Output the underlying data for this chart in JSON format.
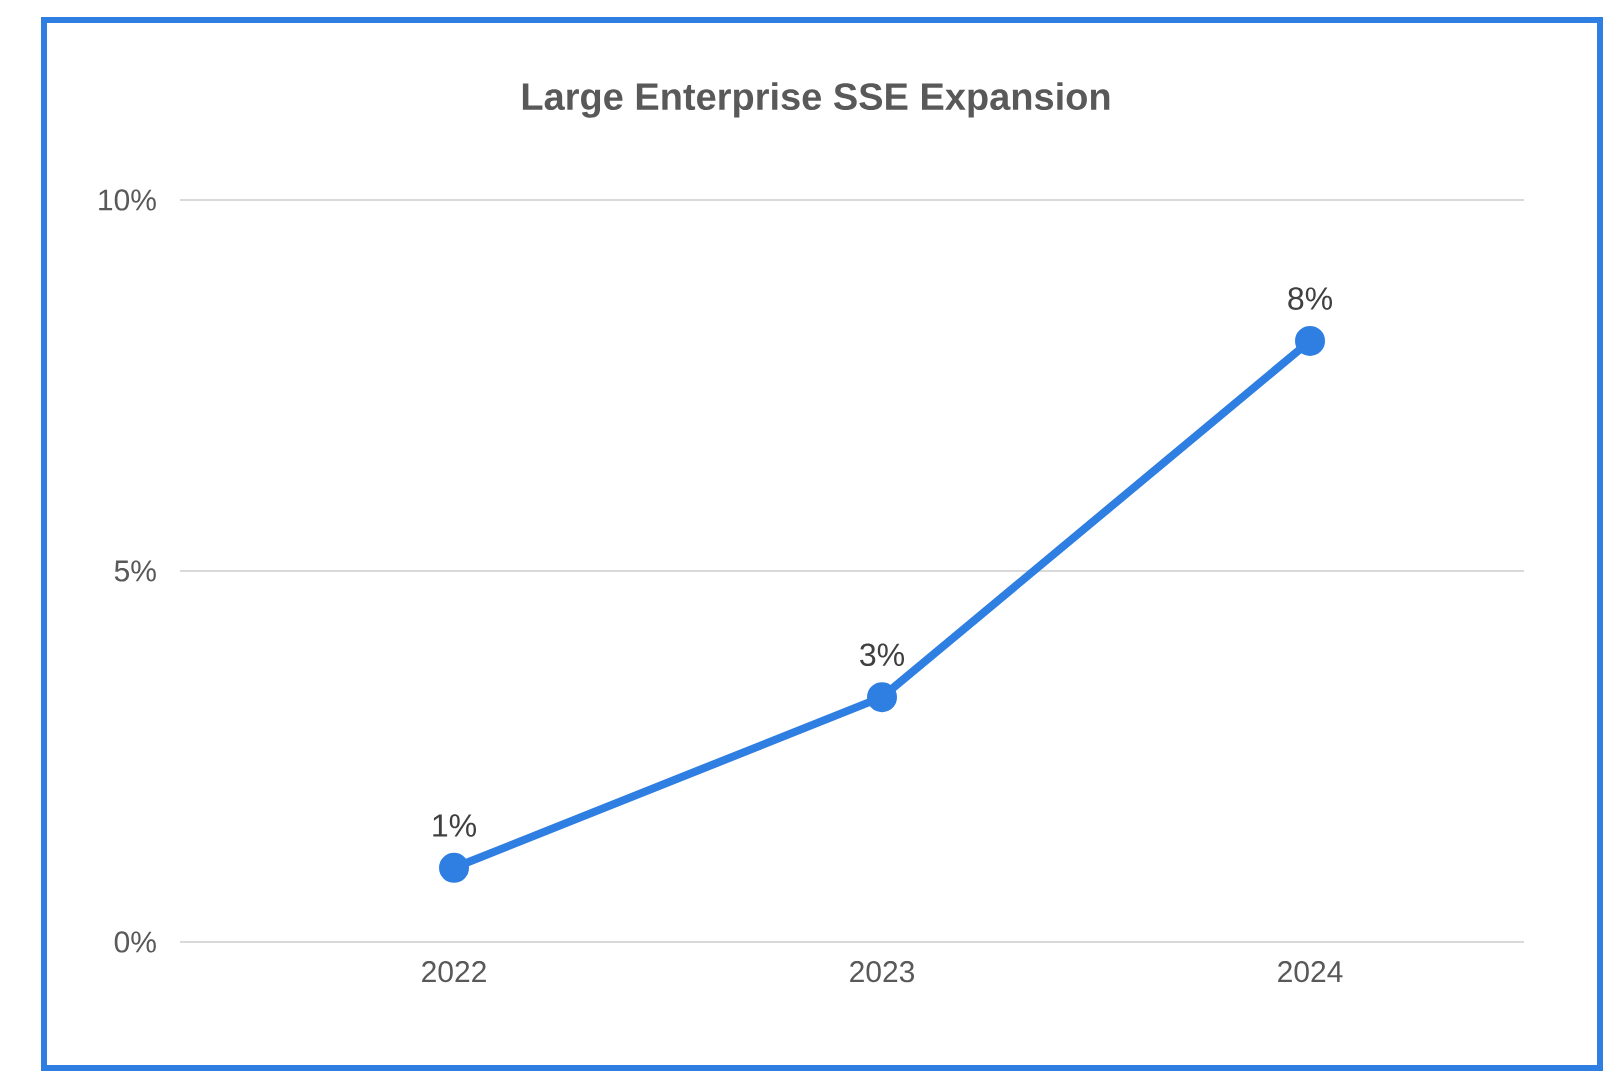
{
  "chart_data": {
    "type": "line",
    "title": "Large Enterprise SSE Expansion",
    "categories": [
      "2022",
      "2023",
      "2024"
    ],
    "series": [
      {
        "color": "#2f7fe3",
        "values": [
          1.0,
          3.3,
          8.1
        ],
        "value_labels": [
          "1%",
          "3%",
          "8%"
        ]
      }
    ],
    "ylim": [
      0,
      10
    ],
    "yticks": [
      {
        "value": 0,
        "label": "0%"
      },
      {
        "value": 5,
        "label": "5%"
      },
      {
        "value": 10,
        "label": "10%"
      }
    ],
    "grid": "y",
    "marker": "circle",
    "line_style": "solid"
  }
}
